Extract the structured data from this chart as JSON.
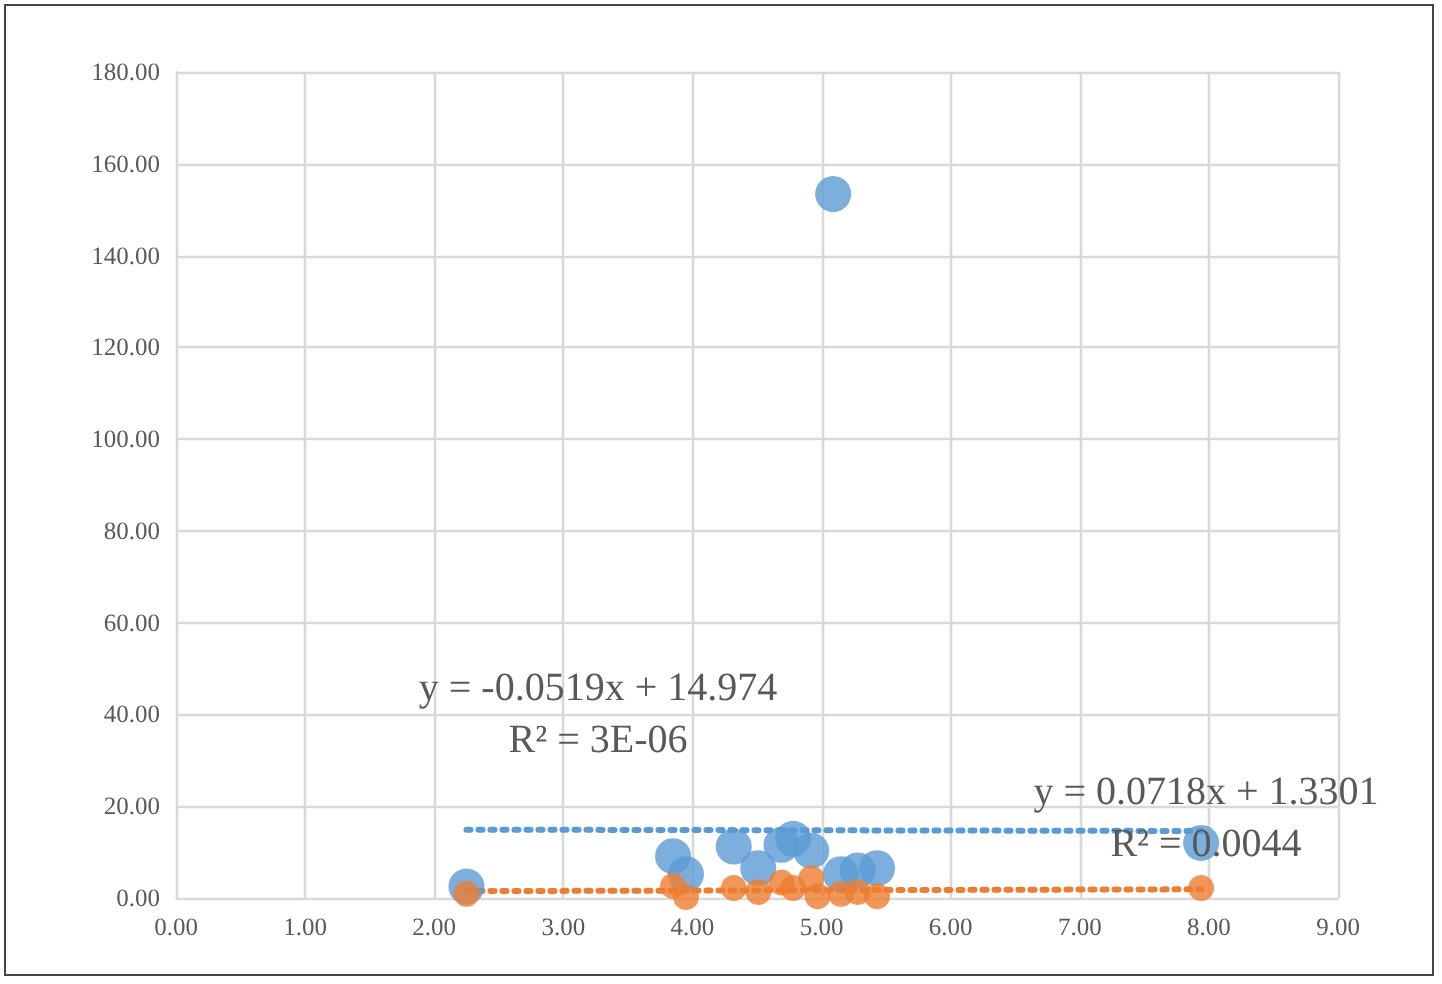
{
  "chart_data": {
    "type": "scatter",
    "series": [
      {
        "color": "#5b9bd5",
        "x": [
          2.25,
          3.85,
          3.95,
          4.32,
          4.51,
          4.69,
          4.78,
          4.92,
          5.09,
          5.15,
          5.28,
          5.43,
          7.94
        ],
        "values": [
          2.5,
          9.1,
          5.2,
          11.2,
          6.5,
          11.6,
          12.9,
          10.3,
          153.4,
          5.2,
          6.0,
          6.5,
          12.0
        ]
      },
      {
        "color": "#ed7d31",
        "x": [
          2.25,
          3.85,
          3.95,
          4.32,
          4.51,
          4.69,
          4.78,
          4.92,
          4.97,
          5.15,
          5.28,
          5.43,
          7.94
        ],
        "values": [
          0.9,
          2.6,
          0.2,
          2.2,
          1.3,
          3.4,
          2.2,
          4.3,
          0.4,
          0.9,
          1.3,
          0.4,
          2.2
        ]
      },
      {
        "type": "line",
        "line_style": "dotted",
        "color": "#5b9bd5",
        "marker": "none",
        "x": [
          2.25,
          7.94
        ],
        "values": [
          14.9,
          14.6
        ]
      },
      {
        "type": "line",
        "line_style": "dotted",
        "color": "#ed7d31",
        "marker": "none",
        "x": [
          2.25,
          7.94
        ],
        "values": [
          1.5,
          1.9
        ]
      }
    ],
    "annotations": [
      "y = -0.0519x + 14.974",
      "R² = 3E-06",
      "y = 0.0718x + 1.3301",
      "R² = 0.0044"
    ],
    "xlim": [
      0,
      9
    ],
    "xticks": [
      {
        "value": 0,
        "label": "0.00"
      },
      {
        "value": 1,
        "label": "1.00"
      },
      {
        "value": 2,
        "label": "2.00"
      },
      {
        "value": 3,
        "label": "3.00"
      },
      {
        "value": 4,
        "label": "4.00"
      },
      {
        "value": 5,
        "label": "5.00"
      },
      {
        "value": 6,
        "label": "6.00"
      },
      {
        "value": 7,
        "label": "7.00"
      },
      {
        "value": 8,
        "label": "8.00"
      },
      {
        "value": 9,
        "label": "9.00"
      }
    ],
    "ylim": [
      0,
      180
    ],
    "yticks": [
      {
        "value": 0,
        "label": "0.00"
      },
      {
        "value": 20,
        "label": "20.00"
      },
      {
        "value": 40,
        "label": "40.00"
      },
      {
        "value": 60,
        "label": "60.00"
      },
      {
        "value": 80,
        "label": "80.00"
      },
      {
        "value": 100,
        "label": "100.00"
      },
      {
        "value": 120,
        "label": "120.00"
      },
      {
        "value": 140,
        "label": "140.00"
      },
      {
        "value": 160,
        "label": "160.00"
      },
      {
        "value": 180,
        "label": "180.00"
      }
    ],
    "grid": true,
    "marker": "circle"
  }
}
